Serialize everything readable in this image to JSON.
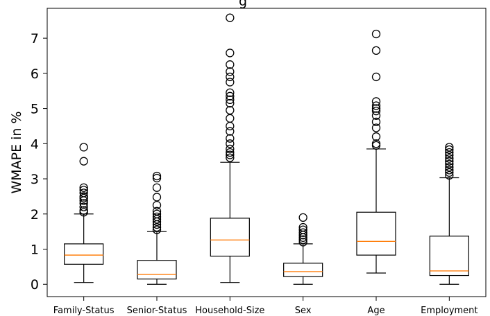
{
  "chart_data": {
    "type": "box",
    "title_fragment": "g",
    "xlabel": "",
    "ylabel": "WMAPE in %",
    "ylim": [
      -0.35,
      7.85
    ],
    "yticks": [
      0,
      1,
      2,
      3,
      4,
      5,
      6,
      7
    ],
    "grid": false,
    "colors": {
      "box": "#000000",
      "median": "#ff7f0e",
      "flier": "#000000",
      "background": "#ffffff"
    },
    "categories": [
      "Family-Status",
      "Senior-Status",
      "Household-Size",
      "Sex",
      "Age",
      "Employment"
    ],
    "boxes": [
      {
        "whisker_low": 0.05,
        "q1": 0.57,
        "median": 0.83,
        "q3": 1.15,
        "whisker_high": 2.0,
        "fliers": [
          2.05,
          2.1,
          2.2,
          2.3,
          2.38,
          2.45,
          2.5,
          2.6,
          2.68,
          2.75,
          3.5,
          3.9
        ]
      },
      {
        "whisker_low": 0.0,
        "q1": 0.15,
        "median": 0.28,
        "q3": 0.68,
        "whisker_high": 1.5,
        "fliers": [
          1.55,
          1.62,
          1.7,
          1.78,
          1.85,
          1.92,
          2.0,
          2.08,
          2.25,
          2.48,
          2.75,
          3.02,
          3.08
        ]
      },
      {
        "whisker_low": 0.05,
        "q1": 0.8,
        "median": 1.26,
        "q3": 1.88,
        "whisker_high": 3.47,
        "fliers": [
          3.6,
          3.68,
          3.75,
          3.85,
          4.0,
          4.15,
          4.35,
          4.5,
          4.72,
          4.95,
          5.15,
          5.25,
          5.35,
          5.45,
          5.75,
          5.9,
          6.05,
          6.25,
          6.58,
          7.58
        ]
      },
      {
        "whisker_low": 0.0,
        "q1": 0.22,
        "median": 0.36,
        "q3": 0.6,
        "whisker_high": 1.15,
        "fliers": [
          1.2,
          1.27,
          1.33,
          1.4,
          1.47,
          1.55,
          1.62,
          1.9
        ]
      },
      {
        "whisker_low": 0.32,
        "q1": 0.83,
        "median": 1.22,
        "q3": 2.05,
        "whisker_high": 3.85,
        "fliers": [
          3.95,
          4.0,
          4.2,
          4.45,
          4.62,
          4.8,
          4.93,
          5.0,
          5.08,
          5.2,
          5.9,
          6.65,
          7.12
        ]
      },
      {
        "whisker_low": 0.0,
        "q1": 0.25,
        "median": 0.38,
        "q3": 1.37,
        "whisker_high": 3.03,
        "fliers": [
          3.1,
          3.18,
          3.25,
          3.33,
          3.42,
          3.5,
          3.58,
          3.67,
          3.75,
          3.83,
          3.9
        ]
      }
    ]
  }
}
